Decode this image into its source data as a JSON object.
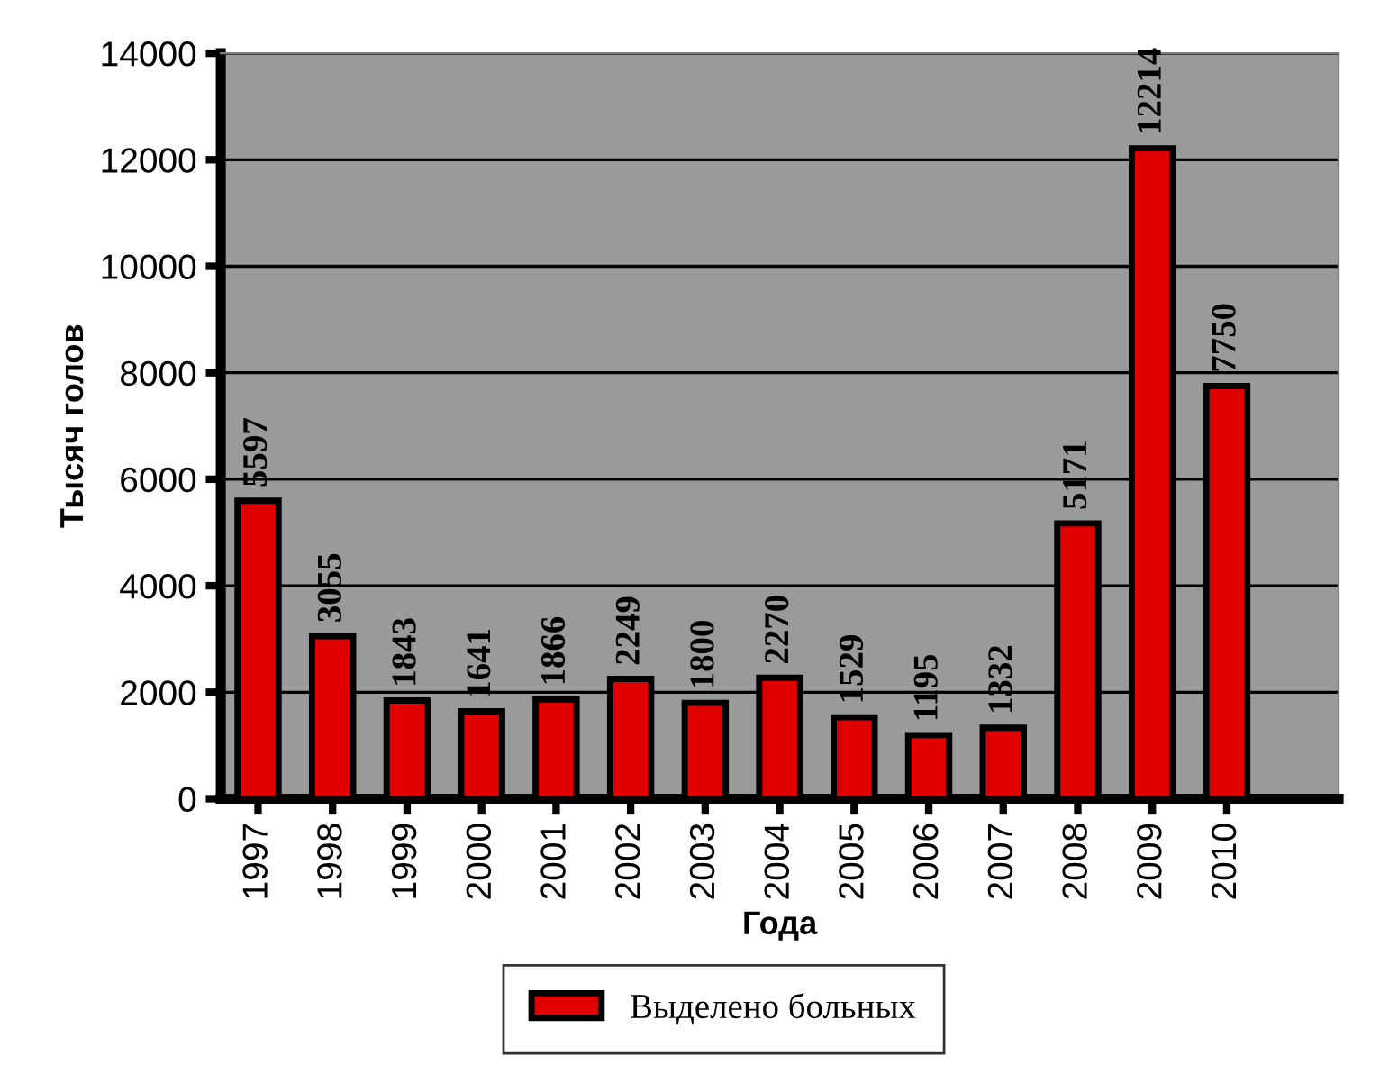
{
  "chart_data": {
    "type": "bar",
    "xlabel": "Года",
    "ylabel": "Тысяч голов",
    "categories": [
      "1997",
      "1998",
      "1999",
      "2000",
      "2001",
      "2002",
      "2003",
      "2004",
      "2005",
      "2006",
      "2007",
      "2008",
      "2009",
      "2010"
    ],
    "series": [
      {
        "name": "Выделено больных",
        "color": "#e00000",
        "values": [
          5597,
          3055,
          1843,
          1641,
          1866,
          2249,
          1800,
          2270,
          1529,
          1195,
          1332,
          5171,
          12214,
          7750
        ]
      }
    ],
    "ylim": [
      0,
      14000
    ],
    "yticks": [
      0,
      2000,
      4000,
      6000,
      8000,
      10000,
      12000,
      14000
    ],
    "grid": "y",
    "legend": "bottom",
    "data_labels": true
  }
}
